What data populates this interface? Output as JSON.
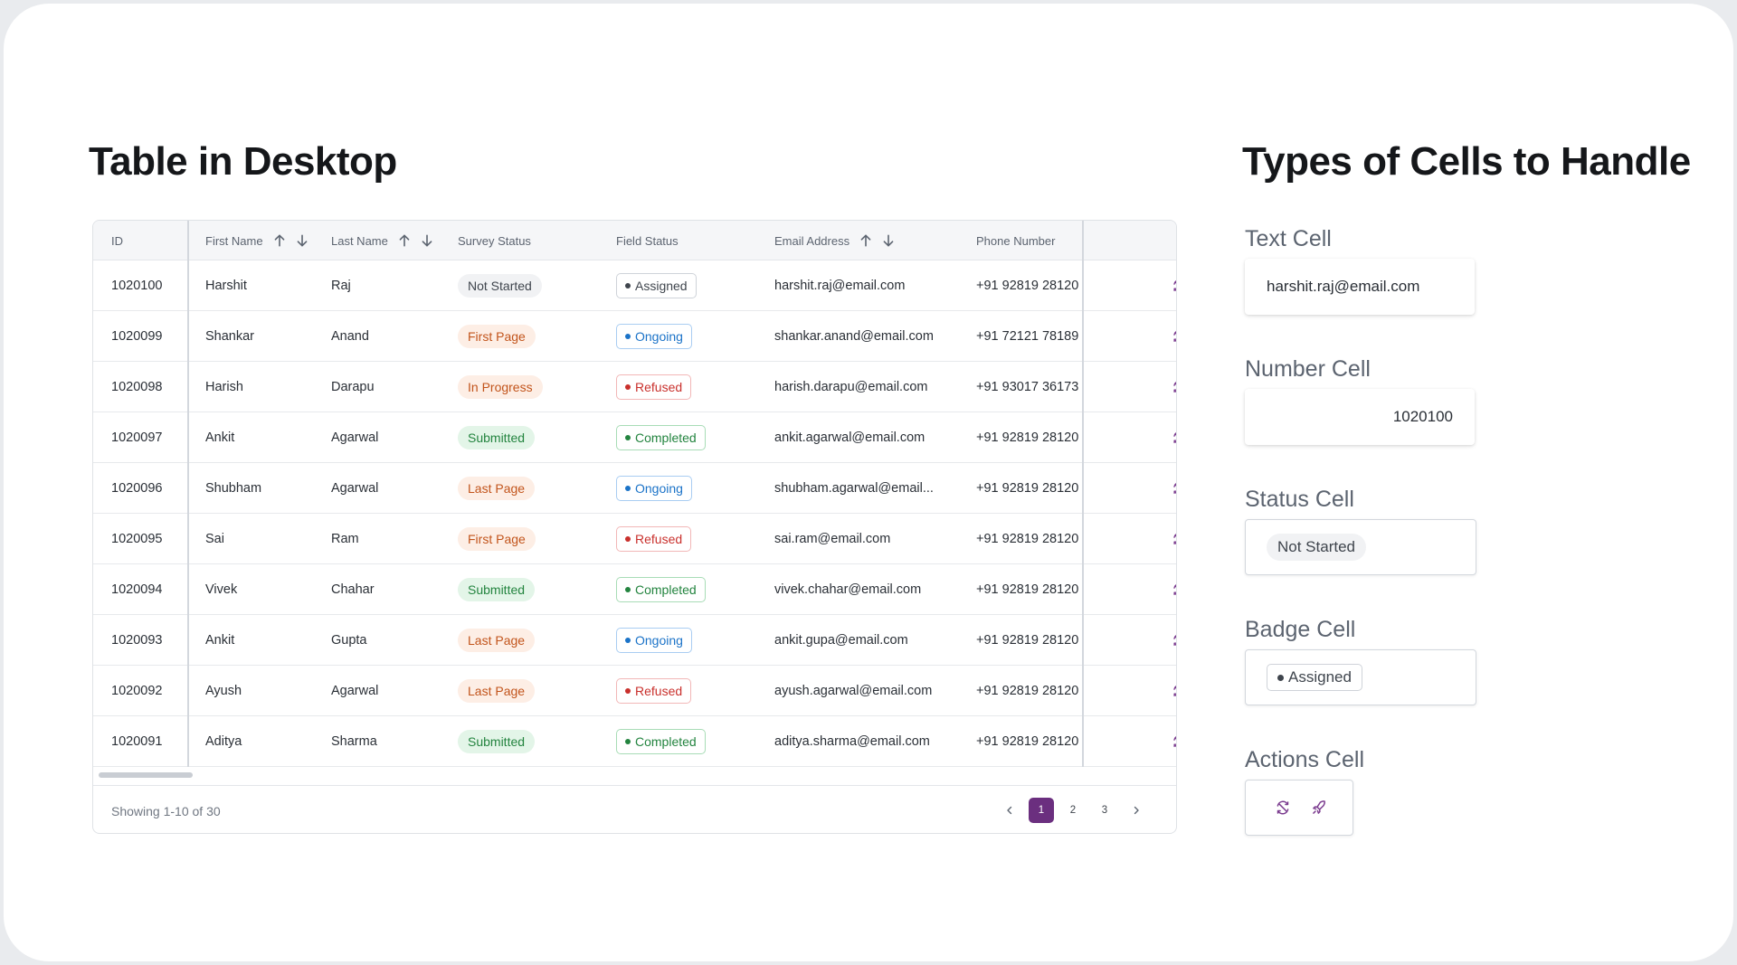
{
  "page": {
    "title_left": "Table in Desktop",
    "title_right": "Types of Cells to Handle"
  },
  "table": {
    "headers": {
      "id": "ID",
      "first_name": "First Name",
      "last_name": "Last Name",
      "survey_status": "Survey Status",
      "field_status": "Field Status",
      "email": "Email Address",
      "phone": "Phone Number"
    },
    "rows": [
      {
        "id": "1020100",
        "first": "Harshit",
        "last": "Raj",
        "survey": "Not Started",
        "survey_tone": "notstarted",
        "field": "Assigned",
        "field_tone": "assigned",
        "email": "harshit.raj@email.com",
        "phone": "+91 92819 28120"
      },
      {
        "id": "1020099",
        "first": "Shankar",
        "last": "Anand",
        "survey": "First Page",
        "survey_tone": "orange",
        "field": "Ongoing",
        "field_tone": "ongoing",
        "email": "shankar.anand@email.com",
        "phone": "+91 72121 78189"
      },
      {
        "id": "1020098",
        "first": "Harish",
        "last": "Darapu",
        "survey": "In Progress",
        "survey_tone": "orange",
        "field": "Refused",
        "field_tone": "refused",
        "email": "harish.darapu@email.com",
        "phone": "+91 93017 36173"
      },
      {
        "id": "1020097",
        "first": "Ankit",
        "last": "Agarwal",
        "survey": "Submitted",
        "survey_tone": "green",
        "field": "Completed",
        "field_tone": "completed",
        "email": "ankit.agarwal@email.com",
        "phone": "+91 92819 28120"
      },
      {
        "id": "1020096",
        "first": "Shubham",
        "last": "Agarwal",
        "survey": "Last Page",
        "survey_tone": "orange",
        "field": "Ongoing",
        "field_tone": "ongoing",
        "email": "shubham.agarwal@email...",
        "phone": "+91 92819 28120"
      },
      {
        "id": "1020095",
        "first": "Sai",
        "last": "Ram",
        "survey": "First Page",
        "survey_tone": "orange",
        "field": "Refused",
        "field_tone": "refused",
        "email": "sai.ram@email.com",
        "phone": "+91 92819 28120"
      },
      {
        "id": "1020094",
        "first": "Vivek",
        "last": "Chahar",
        "survey": "Submitted",
        "survey_tone": "green",
        "field": "Completed",
        "field_tone": "completed",
        "email": "vivek.chahar@email.com",
        "phone": "+91 92819 28120"
      },
      {
        "id": "1020093",
        "first": "Ankit",
        "last": "Gupta",
        "survey": "Last Page",
        "survey_tone": "orange",
        "field": "Ongoing",
        "field_tone": "ongoing",
        "email": "ankit.gupa@email.com",
        "phone": "+91 92819 28120"
      },
      {
        "id": "1020092",
        "first": "Ayush",
        "last": "Agarwal",
        "survey": "Last Page",
        "survey_tone": "orange",
        "field": "Refused",
        "field_tone": "refused",
        "email": "ayush.agarwal@email.com",
        "phone": "+91 92819 28120"
      },
      {
        "id": "1020091",
        "first": "Aditya",
        "last": "Sharma",
        "survey": "Submitted",
        "survey_tone": "green",
        "field": "Completed",
        "field_tone": "completed",
        "email": "aditya.sharma@email.com",
        "phone": "+91 92819 28120"
      }
    ],
    "row_actions": [
      "sync-icon",
      "rocket-icon"
    ],
    "footer": {
      "showing": "Showing 1-10 of 30",
      "pages": [
        "1",
        "2",
        "3"
      ],
      "current_page": "1"
    }
  },
  "cell_types": {
    "text": {
      "label": "Text Cell",
      "value": "harshit.raj@email.com"
    },
    "number": {
      "label": "Number Cell",
      "value": "1020100"
    },
    "status": {
      "label": "Status Cell",
      "value": "Not Started"
    },
    "badge": {
      "label": "Badge Cell",
      "value": "Assigned"
    },
    "actions": {
      "label": "Actions Cell",
      "icons": [
        "sync-icon",
        "rocket-icon"
      ]
    }
  },
  "colors": {
    "accent": "#6b2f7f",
    "orange_text": "#c2541b",
    "green_text": "#23843f",
    "blue_text": "#1b73c8",
    "red_text": "#c9302c"
  }
}
